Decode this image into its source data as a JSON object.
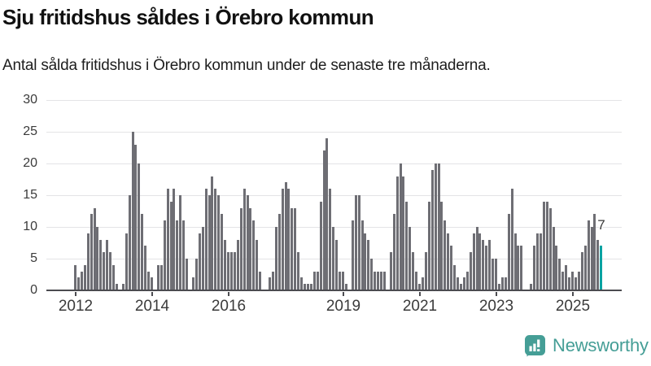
{
  "header": {
    "title": "Sju fritidshus såldes i Örebro kommun",
    "subtitle": "Antal sålda fritidshus i Örebro kommun under de senaste tre månaderna."
  },
  "colors": {
    "bar": "#6e6e74",
    "highlight": "#09a3a2",
    "grid": "#e4e4e6",
    "axis": "#4b4b50",
    "tick_text": "#3b3b3b",
    "brand": "#459e96"
  },
  "chart_data": {
    "type": "bar",
    "title": "Sju fritidshus såldes i Örebro kommun",
    "subtitle": "Antal sålda fritidshus i Örebro kommun under de senaste tre månaderna.",
    "unit": "sålda fritidshus per månad",
    "start_month": "2012-01",
    "end_month": "2025-10",
    "ylim": [
      0,
      30
    ],
    "y_ticks": [
      0,
      5,
      10,
      15,
      20,
      25,
      30
    ],
    "x_tick_years": [
      2012,
      2014,
      2016,
      2019,
      2021,
      2023,
      2025
    ],
    "grid": true,
    "legend": "none",
    "highlight_last_bar": true,
    "last_bar_label": "7",
    "last_bar_value": 7,
    "values_by_year": {
      "2012": [
        4,
        2,
        3,
        4,
        9,
        12,
        13,
        10,
        8,
        6,
        8,
        6
      ],
      "2013": [
        4,
        1,
        0,
        1,
        9,
        15,
        25,
        23,
        20,
        12,
        7,
        3
      ],
      "2014": [
        2,
        0,
        4,
        4,
        11,
        16,
        14,
        16,
        11,
        15,
        11,
        5
      ],
      "2015": [
        0,
        2,
        5,
        9,
        10,
        16,
        15,
        18,
        16,
        15,
        12,
        8
      ],
      "2016": [
        6,
        6,
        6,
        8,
        13,
        16,
        15,
        13,
        11,
        8,
        3,
        0
      ],
      "2017": [
        0,
        2,
        3,
        10,
        12,
        16,
        17,
        16,
        13,
        13,
        6,
        2
      ],
      "2018": [
        1,
        1,
        1,
        3,
        3,
        14,
        22,
        24,
        16,
        10,
        8,
        3
      ],
      "2019": [
        3,
        1,
        0,
        11,
        15,
        15,
        11,
        9,
        8,
        5,
        3,
        3
      ],
      "2020": [
        3,
        3,
        0,
        6,
        12,
        18,
        20,
        18,
        14,
        10,
        6,
        3
      ],
      "2021": [
        1,
        2,
        6,
        14,
        19,
        20,
        20,
        14,
        11,
        9,
        7,
        4
      ],
      "2022": [
        2,
        1,
        2,
        3,
        6,
        9,
        10,
        9,
        8,
        7,
        8,
        5
      ],
      "2023": [
        5,
        1,
        2,
        2,
        12,
        16,
        9,
        7,
        7,
        0,
        0,
        1
      ],
      "2024": [
        7,
        9,
        9,
        14,
        14,
        13,
        10,
        7,
        5,
        3,
        4,
        2
      ],
      "2025": [
        3,
        2,
        3,
        6,
        7,
        11,
        10,
        12,
        8,
        7
      ]
    }
  },
  "footer": {
    "brand": "Newsworthy",
    "logo_icon": "bar-chart-speech-bubble-icon"
  }
}
